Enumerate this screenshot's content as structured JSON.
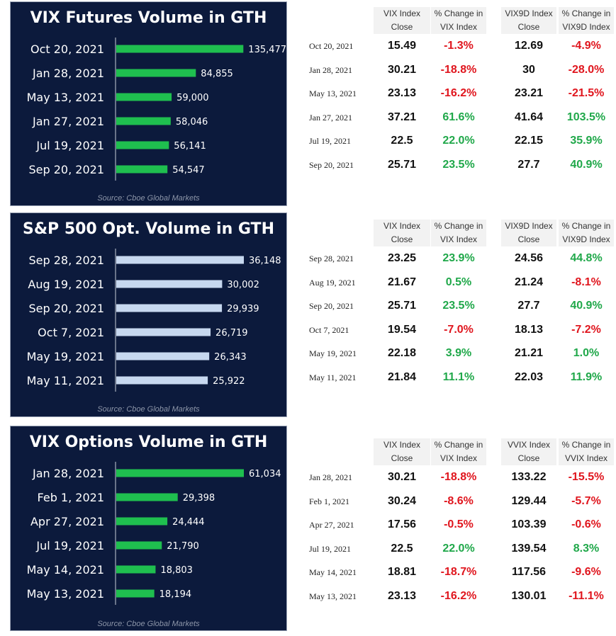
{
  "colors": {
    "panel_bg": "#0c1a3c",
    "green_bar": "#1fbf4f",
    "light_bar": "#c7d8ef",
    "neg": "#e0161e",
    "pos": "#20a84a"
  },
  "chart_data": [
    {
      "type": "bar",
      "orientation": "horizontal",
      "title": "VIX Futures Volume in GTH",
      "source": "Source: Cboe Global Markets",
      "categories": [
        "Oct 20, 2021",
        "Jan 28, 2021",
        "May 13, 2021",
        "Jan 27, 2021",
        "Jul 19, 2021",
        "Sep 20, 2021"
      ],
      "values": [
        135477,
        84855,
        59000,
        58046,
        56141,
        54547
      ],
      "labels": [
        "135,477",
        "84,855",
        "59,000",
        "58,046",
        "56,141",
        "54,547"
      ],
      "bar_color": "green",
      "xlim": [
        0,
        136000
      ]
    },
    {
      "type": "bar",
      "orientation": "horizontal",
      "title": "S&P 500 Opt. Volume in GTH",
      "source": "Source: Cboe Global Markets",
      "categories": [
        "Sep 28, 2021",
        "Aug 19, 2021",
        "Sep 20, 2021",
        "Oct 7, 2021",
        "May 19, 2021",
        "May 11, 2021"
      ],
      "values": [
        36148,
        30002,
        29939,
        26719,
        26343,
        25922
      ],
      "labels": [
        "36,148",
        "30,002",
        "29,939",
        "26,719",
        "26,343",
        "25,922"
      ],
      "bar_color": "light",
      "xlim": [
        0,
        36148
      ]
    },
    {
      "type": "bar",
      "orientation": "horizontal",
      "title": "VIX Options Volume in GTH",
      "source": "Source: Cboe Global Markets",
      "categories": [
        "Jan 28, 2021",
        "Feb 1, 2021",
        "Apr 27, 2021",
        "Jul 19, 2021",
        "May 14, 2021",
        "May 13, 2021"
      ],
      "values": [
        61034,
        29398,
        24444,
        21790,
        18803,
        18194
      ],
      "labels": [
        "61,034",
        "29,398",
        "24,444",
        "21,790",
        "18,803",
        "18,194"
      ],
      "bar_color": "green",
      "xlim": [
        0,
        61034
      ]
    }
  ],
  "tables": [
    {
      "headers": [
        [
          "VIX Index",
          "Close"
        ],
        [
          "% Change in",
          "VIX Index"
        ],
        [
          "VIX9D Index",
          "Close"
        ],
        [
          "% Change in",
          "VIX9D Index"
        ]
      ],
      "rows": [
        {
          "date": "Oct 20, 2021",
          "c1": "15.49",
          "p1": "-1.3%",
          "c2": "12.69",
          "p2": "-4.9%"
        },
        {
          "date": "Jan 28, 2021",
          "c1": "30.21",
          "p1": "-18.8%",
          "c2": "30",
          "p2": "-28.0%"
        },
        {
          "date": "May 13, 2021",
          "c1": "23.13",
          "p1": "-16.2%",
          "c2": "23.21",
          "p2": "-21.5%"
        },
        {
          "date": "Jan 27, 2021",
          "c1": "37.21",
          "p1": "61.6%",
          "c2": "41.64",
          "p2": "103.5%"
        },
        {
          "date": "Jul 19, 2021",
          "c1": "22.5",
          "p1": "22.0%",
          "c2": "22.15",
          "p2": "35.9%"
        },
        {
          "date": "Sep 20, 2021",
          "c1": "25.71",
          "p1": "23.5%",
          "c2": "27.7",
          "p2": "40.9%"
        }
      ]
    },
    {
      "headers": [
        [
          "VIX Index",
          "Close"
        ],
        [
          "% Change in",
          "VIX Index"
        ],
        [
          "VIX9D Index",
          "Close"
        ],
        [
          "% Change in",
          "VIX9D Index"
        ]
      ],
      "rows": [
        {
          "date": "Sep 28, 2021",
          "c1": "23.25",
          "p1": "23.9%",
          "c2": "24.56",
          "p2": "44.8%"
        },
        {
          "date": "Aug 19, 2021",
          "c1": "21.67",
          "p1": "0.5%",
          "c2": "21.24",
          "p2": "-8.1%"
        },
        {
          "date": "Sep 20, 2021",
          "c1": "25.71",
          "p1": "23.5%",
          "c2": "27.7",
          "p2": "40.9%"
        },
        {
          "date": "Oct 7, 2021",
          "c1": "19.54",
          "p1": "-7.0%",
          "c2": "18.13",
          "p2": "-7.2%"
        },
        {
          "date": "May 19, 2021",
          "c1": "22.18",
          "p1": "3.9%",
          "c2": "21.21",
          "p2": "1.0%"
        },
        {
          "date": "May 11, 2021",
          "c1": "21.84",
          "p1": "11.1%",
          "c2": "22.03",
          "p2": "11.9%"
        }
      ]
    },
    {
      "headers": [
        [
          "VIX Index",
          "Close"
        ],
        [
          "% Change in",
          "VIX Index"
        ],
        [
          "VVIX Index",
          "Close"
        ],
        [
          "% Change in",
          "VVIX Index"
        ]
      ],
      "rows": [
        {
          "date": "Jan 28, 2021",
          "c1": "30.21",
          "p1": "-18.8%",
          "c2": "133.22",
          "p2": "-15.5%"
        },
        {
          "date": "Feb 1, 2021",
          "c1": "30.24",
          "p1": "-8.6%",
          "c2": "129.44",
          "p2": "-5.7%"
        },
        {
          "date": "Apr 27, 2021",
          "c1": "17.56",
          "p1": "-0.5%",
          "c2": "103.39",
          "p2": "-0.6%"
        },
        {
          "date": "Jul 19, 2021",
          "c1": "22.5",
          "p1": "22.0%",
          "c2": "139.54",
          "p2": "8.3%"
        },
        {
          "date": "May 14, 2021",
          "c1": "18.81",
          "p1": "-18.7%",
          "c2": "117.56",
          "p2": "-9.6%"
        },
        {
          "date": "May 13, 2021",
          "c1": "23.13",
          "p1": "-16.2%",
          "c2": "130.01",
          "p2": "-11.1%"
        }
      ]
    }
  ]
}
